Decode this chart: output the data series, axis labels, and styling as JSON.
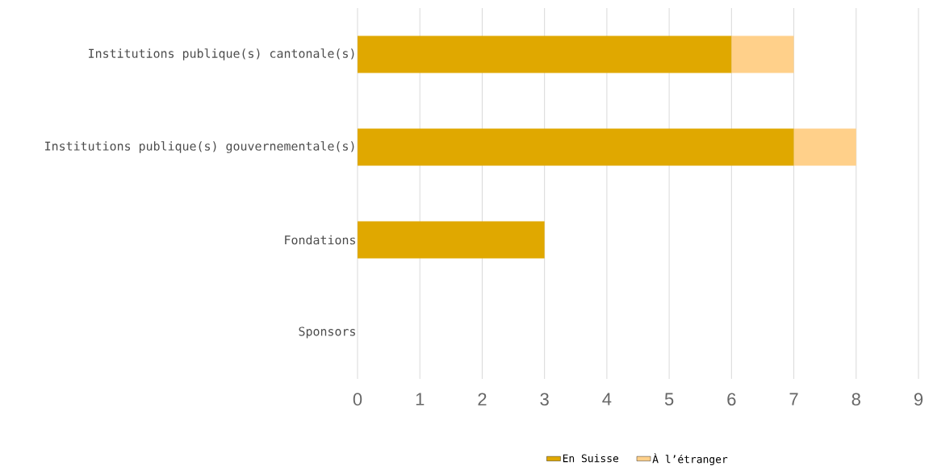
{
  "chart_data": {
    "type": "bar",
    "orientation": "horizontal",
    "stacked": true,
    "categories": [
      "Institutions publique(s) cantonale(s)",
      "Institutions publique(s) gouvernementale(s)",
      "Fondations",
      "Sponsors"
    ],
    "series": [
      {
        "name": "En Suisse",
        "color": "#e0a800",
        "values": [
          6,
          7,
          3,
          0
        ]
      },
      {
        "name": "À l’étranger",
        "color": "#ffd08a",
        "values": [
          1,
          1,
          0,
          0
        ]
      }
    ],
    "xlim": [
      0,
      9
    ],
    "xticks": [
      0,
      1,
      2,
      3,
      4,
      5,
      6,
      7,
      8,
      9
    ],
    "grid": "x",
    "legend": "bottom"
  }
}
